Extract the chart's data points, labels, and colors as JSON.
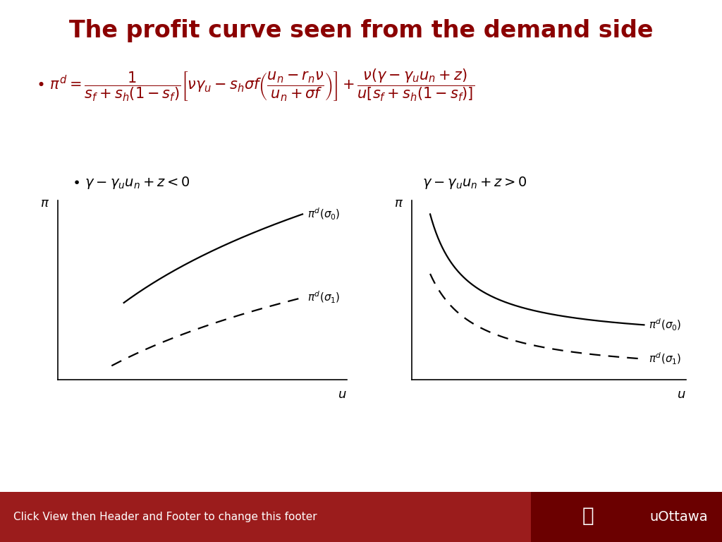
{
  "title": "The profit curve seen from the demand side",
  "title_color": "#8B0000",
  "title_fontsize": 24,
  "formula_color": "#8B0000",
  "condition1": "\\gamma - \\gamma_u u_n + z < 0",
  "condition2": "\\gamma - \\gamma_u u_n + z > 0",
  "footer_text": "Click View then Header and Footer to change this footer",
  "footer_bg": "#9B1C1C",
  "footer_right_bg": "#6B0000",
  "footer_text_color": "#FFFFFF",
  "bg_color": "#FFFFFF",
  "curve_color": "#000000",
  "formula_fontsize": 15,
  "condition_fontsize": 14,
  "axis_label_fontsize": 13,
  "curve_label_fontsize": 11
}
